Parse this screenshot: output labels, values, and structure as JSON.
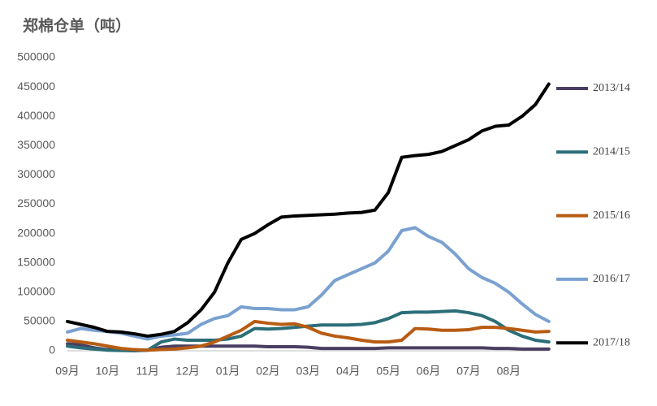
{
  "chart_data": {
    "type": "line",
    "title": "郑棉仓单（吨）",
    "categories": [
      "09月",
      null,
      null,
      "10月",
      null,
      null,
      "11月",
      null,
      null,
      "12月",
      null,
      null,
      "01月",
      null,
      null,
      "02月",
      null,
      null,
      "03月",
      null,
      null,
      "04月",
      null,
      null,
      "05月",
      null,
      null,
      "06月",
      null,
      null,
      "07月",
      null,
      null,
      "08月",
      null,
      null,
      null
    ],
    "ylim": [
      0,
      500000
    ],
    "yticks": [
      0,
      50000,
      100000,
      150000,
      200000,
      250000,
      300000,
      350000,
      400000,
      450000,
      500000
    ],
    "grid": false,
    "legend": "right",
    "series": [
      {
        "name": "2013/14",
        "color": "#4a3f62",
        "values": [
          12000,
          10000,
          5000,
          2000,
          1000,
          1000,
          1000,
          6000,
          8000,
          8000,
          8000,
          8000,
          8000,
          8000,
          8000,
          7000,
          7000,
          7000,
          6000,
          4000,
          4000,
          4000,
          4000,
          4000,
          5000,
          5000,
          5000,
          5000,
          5000,
          5000,
          5000,
          5000,
          4000,
          4000,
          3000,
          3000,
          3000
        ]
      },
      {
        "name": "2014/15",
        "color": "#2b6e78",
        "values": [
          8000,
          5000,
          3000,
          1000,
          500,
          0,
          1000,
          15000,
          20000,
          18000,
          18000,
          18000,
          20000,
          25000,
          38000,
          37000,
          38000,
          40000,
          42000,
          44000,
          44000,
          44000,
          45000,
          48000,
          55000,
          65000,
          66000,
          66000,
          67000,
          68000,
          65000,
          60000,
          50000,
          35000,
          25000,
          18000,
          15000
        ]
      },
      {
        "name": "2015/16",
        "color": "#b85c13",
        "values": [
          18000,
          15000,
          12000,
          8000,
          4000,
          2000,
          1000,
          2000,
          3000,
          5000,
          8000,
          15000,
          25000,
          35000,
          50000,
          47000,
          45000,
          46000,
          40000,
          30000,
          25000,
          22000,
          18000,
          15000,
          15000,
          18000,
          38000,
          37000,
          35000,
          35000,
          36000,
          40000,
          40000,
          38000,
          35000,
          32000,
          33000
        ]
      },
      {
        "name": "2016/17",
        "color": "#7aa1d0",
        "values": [
          32000,
          38000,
          35000,
          33000,
          30000,
          25000,
          20000,
          25000,
          27000,
          30000,
          45000,
          55000,
          60000,
          75000,
          72000,
          72000,
          70000,
          70000,
          75000,
          95000,
          120000,
          130000,
          140000,
          150000,
          170000,
          205000,
          210000,
          195000,
          185000,
          165000,
          140000,
          125000,
          115000,
          100000,
          80000,
          62000,
          50000
        ]
      },
      {
        "name": "2017/18",
        "color": "#000000",
        "values": [
          50000,
          45000,
          40000,
          33000,
          32000,
          29000,
          25000,
          28000,
          33000,
          48000,
          70000,
          100000,
          150000,
          190000,
          200000,
          215000,
          228000,
          230000,
          231000,
          232000,
          233000,
          235000,
          236000,
          240000,
          270000,
          330000,
          333000,
          335000,
          340000,
          350000,
          360000,
          375000,
          383000,
          385000,
          400000,
          420000,
          455000
        ]
      }
    ]
  }
}
